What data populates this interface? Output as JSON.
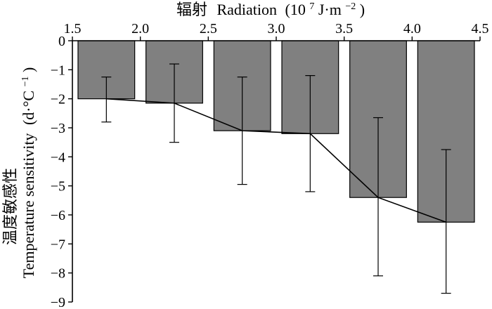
{
  "chart_data": {
    "type": "bar",
    "xlabel_parts": {
      "cn": "辐射",
      "en": "Radiation",
      "unit_open": "(10",
      "unit_sup1": "7",
      "unit_mid": " J·m",
      "unit_sup2": "−2",
      "unit_close": ")"
    },
    "ylabel_parts": {
      "cn": "温度敏感性",
      "en": "Temperature sensitivity",
      "unit_open": "(d·°C",
      "unit_sup": "−1",
      "unit_close": ")"
    },
    "x_ticks": [
      "1.5",
      "2.0",
      "2.5",
      "3.0",
      "3.5",
      "4.0",
      "4.5"
    ],
    "y_ticks": [
      "0",
      "−1",
      "−2",
      "−3",
      "−4",
      "−5",
      "−6",
      "−7",
      "−8",
      "−9"
    ],
    "xlim": [
      1.5,
      4.5
    ],
    "ylim": [
      -9,
      0
    ],
    "x_axis_position": "top",
    "bar_bins": [
      [
        1.5,
        2.0
      ],
      [
        2.0,
        2.5
      ],
      [
        2.5,
        3.0
      ],
      [
        3.0,
        3.5
      ],
      [
        3.5,
        4.0
      ],
      [
        4.0,
        4.5
      ]
    ],
    "values": [
      -2.0,
      -2.15,
      -3.1,
      -3.2,
      -5.4,
      -6.25
    ],
    "error_upper": [
      -1.25,
      -0.8,
      -1.25,
      -1.2,
      -2.65,
      -3.75
    ],
    "error_lower": [
      -2.8,
      -3.5,
      -4.95,
      -5.2,
      -8.1,
      -8.7
    ],
    "trend_line": true,
    "bar_color": "#808080"
  }
}
